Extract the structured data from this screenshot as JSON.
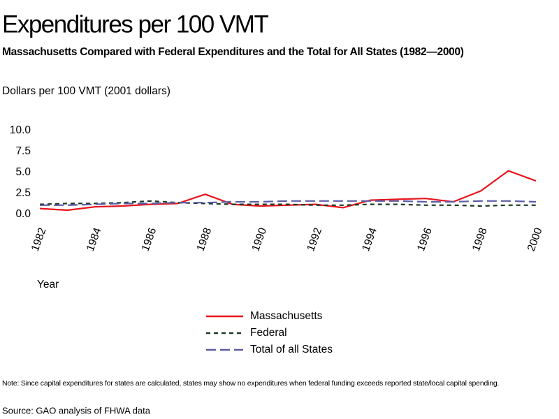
{
  "chart_data": {
    "type": "line",
    "title": "Expenditures per 100 VMT",
    "subtitle": "Massachusetts Compared with Federal Expenditures and the Total for All States (1982—2000)",
    "y_label": "Dollars per 100 VMT (2001 dollars)",
    "x_label": "Year",
    "note": "Note: Since capital expenditures for states are calculated, states may show no expenditures when federal funding exceeds reported state/local capital spending.",
    "source": "Source: GAO analysis of FHWA data",
    "x": [
      1982,
      1983,
      1984,
      1985,
      1986,
      1987,
      1988,
      1989,
      1990,
      1991,
      1992,
      1993,
      1994,
      1995,
      1996,
      1997,
      1998,
      1999,
      2000
    ],
    "series": [
      {
        "name": "Massachusetts",
        "color": "#e8151b",
        "dash": "solid",
        "values": [
          0.7,
          0.5,
          0.9,
          1.0,
          1.2,
          1.3,
          2.4,
          1.2,
          1.0,
          1.1,
          1.2,
          0.8,
          1.7,
          1.8,
          1.9,
          1.5,
          2.8,
          5.2,
          4.0
        ]
      },
      {
        "name": "Federal",
        "color": "#1b3a24",
        "dash": "dashed",
        "values": [
          1.2,
          1.3,
          1.3,
          1.4,
          1.6,
          1.4,
          1.3,
          1.2,
          1.2,
          1.2,
          1.1,
          1.1,
          1.2,
          1.2,
          1.1,
          1.1,
          1.0,
          1.1,
          1.1
        ]
      },
      {
        "name": "Total of all States",
        "color": "#5b5ea6",
        "dash": "long-dashed",
        "values": [
          1.1,
          1.1,
          1.2,
          1.3,
          1.3,
          1.4,
          1.4,
          1.5,
          1.5,
          1.6,
          1.6,
          1.6,
          1.6,
          1.6,
          1.5,
          1.5,
          1.6,
          1.6,
          1.5
        ]
      }
    ],
    "xlim": [
      1982,
      2000
    ],
    "xticks": [
      1982,
      1984,
      1986,
      1988,
      1990,
      1992,
      1994,
      1996,
      1998,
      2000
    ],
    "ylim": [
      0,
      10
    ],
    "yticks": [
      {
        "value": 0,
        "label": "0.0"
      },
      2.5,
      {
        "value": 5,
        "label": "5.0"
      },
      7.5,
      {
        "value": 10,
        "label": "10.0"
      }
    ],
    "grid": false
  }
}
